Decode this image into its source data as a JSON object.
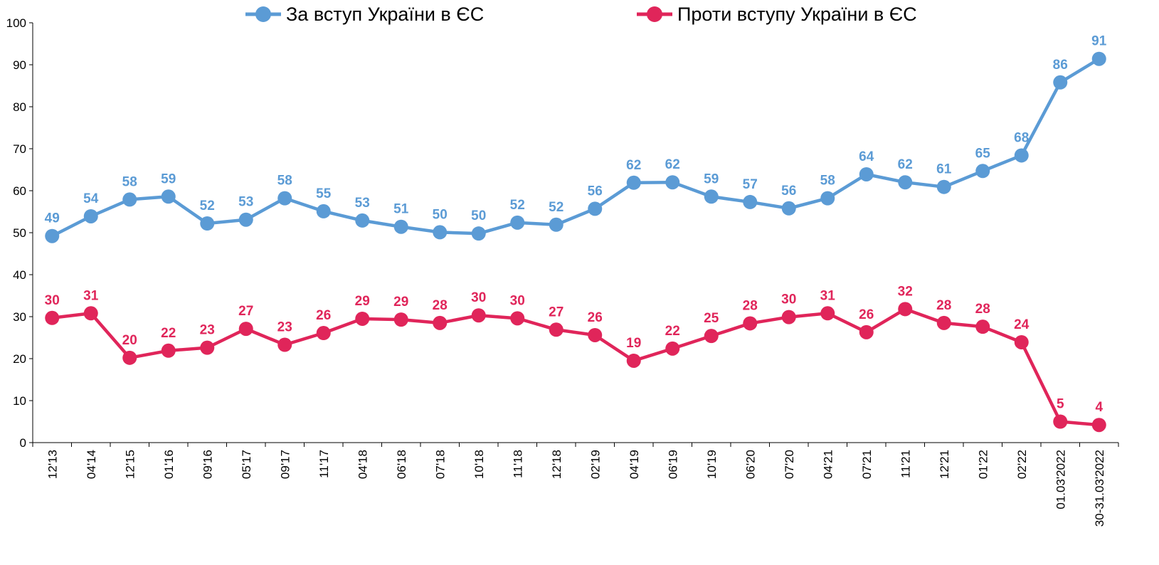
{
  "chart_data": {
    "type": "line",
    "title": "",
    "xlabel": "",
    "ylabel": "",
    "ylim": [
      0,
      100
    ],
    "yticks": [
      0,
      10,
      20,
      30,
      40,
      50,
      60,
      70,
      80,
      90,
      100
    ],
    "grid": false,
    "legend_position": "top-center",
    "categories": [
      "12'13",
      "04'14",
      "12'15",
      "01'16",
      "09'16",
      "05'17",
      "09'17",
      "11'17",
      "04'18",
      "06'18",
      "07'18",
      "10'18",
      "11'18",
      "12'18",
      "02'19",
      "04'19",
      "06'19",
      "10'19",
      "06'20",
      "07'20",
      "04'21",
      "07'21",
      "11'21",
      "12'21",
      "01'22",
      "02'22",
      "01.03'2022",
      "30-31.03'2022"
    ],
    "series": [
      {
        "name": "За вступ України в ЄС",
        "color": "#5b9bd5",
        "values": [
          49.2,
          53.9,
          57.9,
          58.6,
          52.2,
          53.1,
          58.2,
          55.1,
          52.9,
          51.4,
          50.1,
          49.8,
          52.4,
          51.9,
          55.7,
          61.9,
          62.0,
          58.6,
          57.3,
          55.8,
          58.2,
          63.9,
          62.0,
          60.9,
          64.7,
          68.4,
          85.8,
          91.4
        ],
        "labels": [
          "49",
          "54",
          "58",
          "59",
          "52",
          "53",
          "58",
          "55",
          "53",
          "51",
          "50",
          "50",
          "52",
          "52",
          "56",
          "62",
          "62",
          "59",
          "57",
          "56",
          "58",
          "64",
          "62",
          "61",
          "65",
          "68",
          "86",
          "91"
        ]
      },
      {
        "name": "Проти вступу України в ЄС",
        "color": "#e0255a",
        "values": [
          29.7,
          30.8,
          20.2,
          21.9,
          22.6,
          27.1,
          23.3,
          26.1,
          29.5,
          29.3,
          28.5,
          30.3,
          29.6,
          26.9,
          25.6,
          19.5,
          22.4,
          25.4,
          28.4,
          29.9,
          30.8,
          26.3,
          31.8,
          28.5,
          27.6,
          23.9,
          5.0,
          4.2
        ],
        "labels": [
          "30",
          "31",
          "20",
          "22",
          "23",
          "27",
          "23",
          "26",
          "29",
          "29",
          "28",
          "30",
          "30",
          "27",
          "26",
          "19",
          "22",
          "25",
          "28",
          "30",
          "31",
          "26",
          "32",
          "28",
          "28",
          "24",
          "5",
          "4"
        ]
      }
    ]
  }
}
